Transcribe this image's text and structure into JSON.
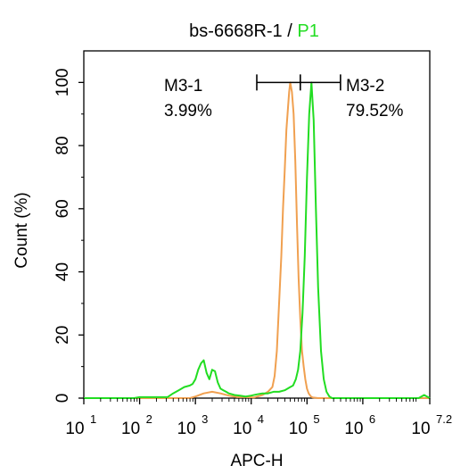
{
  "chart_data": {
    "type": "line",
    "title_sample": "bs-6668R-1",
    "title_separator": " / ",
    "title_gate": "P1",
    "xlabel": "APC-H",
    "ylabel": "Count  (%)",
    "x_scale": "log",
    "xlim": [
      1,
      7.2
    ],
    "ylim": [
      0,
      110
    ],
    "x_tick_exponents": [
      "1",
      "2",
      "3",
      "4",
      "5",
      "6",
      "7.2"
    ],
    "x_tick_base": "10",
    "y_ticks": [
      "0",
      "20",
      "40",
      "60",
      "80",
      "100"
    ],
    "colors": {
      "P1": "#22dd22",
      "control": "#f0a050",
      "axis": "#000000"
    },
    "series": [
      {
        "color": "#f0a050",
        "x_log10": [
          1.8,
          2.9,
          3.0,
          3.15,
          3.3,
          3.45,
          3.6,
          3.75,
          3.9,
          4.05,
          4.2,
          4.3,
          4.38,
          4.42,
          4.46,
          4.5,
          4.54,
          4.57,
          4.6,
          4.63,
          4.66,
          4.68,
          4.7,
          4.73,
          4.76,
          4.79,
          4.82,
          4.85,
          4.88,
          4.91,
          4.94,
          4.97,
          5.0,
          5.03,
          5.07,
          5.1,
          5.2,
          7.2
        ],
        "y": [
          0,
          0,
          0.5,
          1.5,
          2,
          1.5,
          0.8,
          0.3,
          0.3,
          0.2,
          1,
          2,
          3.5,
          7,
          15,
          30,
          45,
          60,
          72,
          85,
          92,
          97,
          100,
          97,
          90,
          75,
          55,
          38,
          25,
          15,
          10,
          6,
          3,
          1.5,
          0.5,
          0.2,
          0,
          0
        ]
      },
      {
        "color": "#22dd22",
        "x_log10": [
          1.0,
          1.9,
          2.0,
          2.5,
          2.6,
          2.7,
          2.8,
          2.9,
          2.95,
          3.0,
          3.05,
          3.1,
          3.15,
          3.2,
          3.25,
          3.3,
          3.35,
          3.4,
          3.45,
          3.5,
          3.55,
          3.6,
          3.7,
          3.8,
          3.9,
          4.0,
          4.1,
          4.2,
          4.3,
          4.4,
          4.5,
          4.6,
          4.7,
          4.75,
          4.8,
          4.84,
          4.88,
          4.92,
          4.96,
          5.0,
          5.04,
          5.08,
          5.12,
          5.16,
          5.2,
          5.25,
          5.3,
          5.35,
          5.4,
          5.45,
          5.5,
          6.0,
          7.0,
          7.1,
          7.2
        ],
        "y": [
          0,
          0,
          0.3,
          0.3,
          1.5,
          2.5,
          3.5,
          4,
          4.5,
          6,
          9,
          11,
          12,
          8,
          6,
          9,
          8.5,
          5,
          3,
          2.5,
          2,
          1.5,
          1,
          0.8,
          0.5,
          0.8,
          1.2,
          1.5,
          1.5,
          2,
          2,
          2.5,
          3.5,
          4,
          6,
          9,
          15,
          27,
          45,
          70,
          90,
          100,
          88,
          60,
          35,
          15,
          6,
          2,
          0.5,
          0,
          0,
          0,
          0,
          1,
          0
        ]
      }
    ],
    "gates": [
      {
        "name": "M3-1",
        "percent": "3.99%"
      },
      {
        "name": "M3-2",
        "percent": "79.52%"
      }
    ],
    "gate_marker": {
      "left_log10": 4.1,
      "split_log10": 4.88,
      "right_log10": 5.6,
      "y": 100
    }
  }
}
